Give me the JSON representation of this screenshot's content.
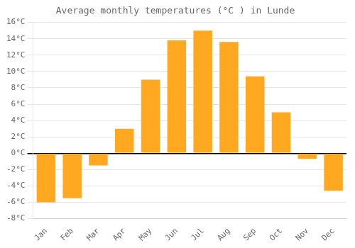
{
  "chart_data": {
    "type": "bar",
    "title": "Average monthly temperatures (°C ) in Lunde",
    "categories": [
      "Jan",
      "Feb",
      "Mar",
      "Apr",
      "May",
      "Jun",
      "Jul",
      "Aug",
      "Sep",
      "Oct",
      "Nov",
      "Dec"
    ],
    "values": [
      -6.0,
      -5.5,
      -1.5,
      3.0,
      9.0,
      13.8,
      15.0,
      13.6,
      9.4,
      5.0,
      -0.7,
      -4.6
    ],
    "color": "#FFA820",
    "ylim": [
      -8,
      16
    ],
    "yticks": [
      {
        "value": -8,
        "label": "-8°C"
      },
      {
        "value": -6,
        "label": "-6°C"
      },
      {
        "value": -4,
        "label": "-4°C"
      },
      {
        "value": -2,
        "label": "-2°C"
      },
      {
        "value": 0,
        "label": "0°C"
      },
      {
        "value": 2,
        "label": "2°C"
      },
      {
        "value": 4,
        "label": "4°C"
      },
      {
        "value": 6,
        "label": "6°C"
      },
      {
        "value": 8,
        "label": "8°C"
      },
      {
        "value": 10,
        "label": "10°C"
      },
      {
        "value": 12,
        "label": "12°C"
      },
      {
        "value": 14,
        "label": "14°C"
      },
      {
        "value": 16,
        "label": "16°C"
      }
    ],
    "grid": "y"
  }
}
